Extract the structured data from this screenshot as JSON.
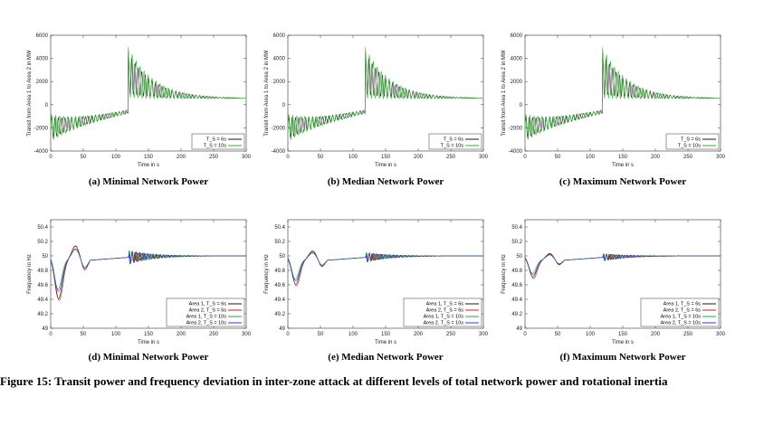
{
  "caption": "Figure 15: Transit power and frequency deviation in inter-zone attack at different levels of total network power and rotational inertia",
  "colors": {
    "ts6": "#1a1a1a",
    "ts10": "#2bb52b",
    "area1_ts6": "#1a1a1a",
    "area2_ts6": "#c0201e",
    "area1_ts10": "#27a64a",
    "area2_ts10": "#2a3fd0"
  },
  "chart_data": [
    {
      "id": "a",
      "type": "line",
      "caption": "(a) Minimal Network Power",
      "xlabel": "Time in s",
      "ylabel": "Transit from Area 1 to Area 2 in MW",
      "xlim": [
        0,
        300
      ],
      "ylim": [
        -4000,
        6000
      ],
      "xticks": [
        0,
        50,
        100,
        150,
        200,
        250,
        300
      ],
      "yticks": [
        -4000,
        -2000,
        0,
        2000,
        4000,
        6000
      ],
      "legend_position": "bottom-right",
      "series": [
        {
          "name": "T_S = 6s",
          "pre_start": -2000,
          "pre_end": -600,
          "pre_osc": 900,
          "post_peak": 5000,
          "post_final": 550,
          "post_osc": 1800
        },
        {
          "name": "T_S = 10s",
          "pre_start": -2000,
          "pre_end": -600,
          "pre_osc": 1100,
          "post_peak": 5100,
          "post_final": 550,
          "post_osc": 2200
        }
      ]
    },
    {
      "id": "b",
      "type": "line",
      "caption": "(b) Median Network Power",
      "xlabel": "Time in s",
      "ylabel": "Transit from Area 1 to Area 2 in MW",
      "xlim": [
        0,
        300
      ],
      "ylim": [
        -4000,
        6000
      ],
      "xticks": [
        0,
        50,
        100,
        150,
        200,
        250,
        300
      ],
      "yticks": [
        -4000,
        -2000,
        0,
        2000,
        4000,
        6000
      ],
      "legend_position": "bottom-right",
      "series": [
        {
          "name": "T_S = 6s",
          "pre_start": -2000,
          "pre_end": -600,
          "pre_osc": 900,
          "post_peak": 4900,
          "post_final": 550,
          "post_osc": 1800
        },
        {
          "name": "T_S = 10s",
          "pre_start": -2000,
          "pre_end": -600,
          "pre_osc": 1100,
          "post_peak": 5000,
          "post_final": 550,
          "post_osc": 2200
        }
      ]
    },
    {
      "id": "c",
      "type": "line",
      "caption": "(c) Maximum Network Power",
      "xlabel": "Time in s",
      "ylabel": "Transit from Area 1 to Area 2 in MW",
      "xlim": [
        0,
        300
      ],
      "ylim": [
        -4000,
        6000
      ],
      "xticks": [
        0,
        50,
        100,
        150,
        200,
        250,
        300
      ],
      "yticks": [
        -4000,
        -2000,
        0,
        2000,
        4000,
        6000
      ],
      "legend_position": "bottom-right",
      "series": [
        {
          "name": "T_S = 6s",
          "pre_start": -2000,
          "pre_end": -600,
          "pre_osc": 900,
          "post_peak": 4900,
          "post_final": 550,
          "post_osc": 1800
        },
        {
          "name": "T_S = 10s",
          "pre_start": -2000,
          "pre_end": -600,
          "pre_osc": 1100,
          "post_peak": 5000,
          "post_final": 550,
          "post_osc": 2200
        }
      ]
    },
    {
      "id": "d",
      "type": "line",
      "caption": "(d) Minimal Network Power",
      "xlabel": "Time in s",
      "ylabel": "Frequency in Hz",
      "xlim": [
        0,
        300
      ],
      "ylim": [
        49.0,
        50.5
      ],
      "xticks": [
        0,
        50,
        100,
        150,
        200,
        250,
        300
      ],
      "yticks": [
        49.0,
        49.2,
        49.4,
        49.6,
        49.8,
        50.0,
        50.2,
        50.4
      ],
      "legend_position": "bottom-right",
      "series": [
        {
          "name": "Area 1, T_S = 6s",
          "dip": 49.45,
          "dip_t": 12,
          "post_osc": 0.08
        },
        {
          "name": "Area 2, T_S = 6s",
          "dip": 49.43,
          "dip_t": 13,
          "post_osc": 0.08
        },
        {
          "name": "Area 1, T_S = 10s",
          "dip": 49.58,
          "dip_t": 11,
          "post_osc": 0.1
        },
        {
          "name": "Area 2, T_S = 10s",
          "dip": 49.55,
          "dip_t": 12,
          "post_osc": 0.1
        }
      ]
    },
    {
      "id": "e",
      "type": "line",
      "caption": "(e) Median Network Power",
      "xlabel": "Time in s",
      "ylabel": "Frequency in Hz",
      "xlim": [
        0,
        300
      ],
      "ylim": [
        49.0,
        50.5
      ],
      "xticks": [
        0,
        50,
        100,
        150,
        200,
        250,
        300
      ],
      "yticks": [
        49.0,
        49.2,
        49.4,
        49.6,
        49.8,
        50.0,
        50.2,
        50.4
      ],
      "legend_position": "bottom-right",
      "series": [
        {
          "name": "Area 1, T_S = 6s",
          "dip": 49.65,
          "dip_t": 12,
          "post_osc": 0.06
        },
        {
          "name": "Area 2, T_S = 6s",
          "dip": 49.63,
          "dip_t": 13,
          "post_osc": 0.06
        },
        {
          "name": "Area 1, T_S = 10s",
          "dip": 49.72,
          "dip_t": 11,
          "post_osc": 0.07
        },
        {
          "name": "Area 2, T_S = 10s",
          "dip": 49.7,
          "dip_t": 12,
          "post_osc": 0.07
        }
      ]
    },
    {
      "id": "f",
      "type": "line",
      "caption": "(f) Maximum Network Power",
      "xlabel": "Time in s",
      "ylabel": "Frequency in Hz",
      "xlim": [
        0,
        300
      ],
      "ylim": [
        49.0,
        50.5
      ],
      "xticks": [
        0,
        50,
        100,
        150,
        200,
        250,
        300
      ],
      "yticks": [
        49.0,
        49.2,
        49.4,
        49.6,
        49.8,
        50.0,
        50.2,
        50.4
      ],
      "legend_position": "bottom-right",
      "series": [
        {
          "name": "Area 1, T_S = 6s",
          "dip": 49.75,
          "dip_t": 12,
          "post_osc": 0.05
        },
        {
          "name": "Area 2, T_S = 6s",
          "dip": 49.73,
          "dip_t": 13,
          "post_osc": 0.05
        },
        {
          "name": "Area 1, T_S = 10s",
          "dip": 49.8,
          "dip_t": 11,
          "post_osc": 0.05
        },
        {
          "name": "Area 2, T_S = 10s",
          "dip": 49.78,
          "dip_t": 12,
          "post_osc": 0.05
        }
      ]
    }
  ]
}
